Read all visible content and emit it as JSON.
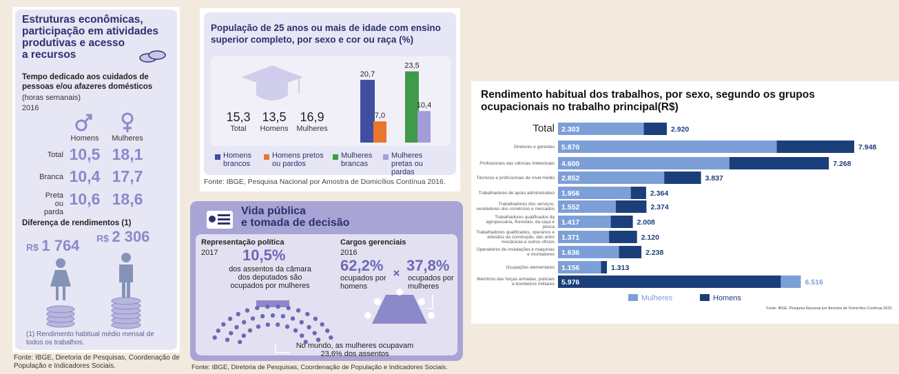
{
  "economic": {
    "title_lines": [
      "Estruturas econômicas,",
      "participação em atividades",
      "produtivas e acesso",
      "a recursos"
    ],
    "time_title": "Tempo dedicado aos cuidados de pessoas e/ou afazeres domésticos",
    "unit": "(horas semanais)",
    "year": "2016",
    "columns": [
      "Homens",
      "Mulheres"
    ],
    "rows": [
      {
        "label": "Total",
        "values": [
          "10,5",
          "18,1"
        ]
      },
      {
        "label": "Branca",
        "values": [
          "10,4",
          "17,7"
        ]
      },
      {
        "label": "Preta ou parda",
        "values": [
          "10,6",
          "18,6"
        ]
      }
    ],
    "income_title": "Diferença de rendimentos (1)",
    "income": [
      {
        "currency": "R$",
        "value": "1 764"
      },
      {
        "currency": "R$",
        "value": "2 306"
      }
    ],
    "footnote": "(1) Rendimento habitual médio mensal de todos os trabalhos.",
    "source": "Fonte: IBGE, Diretoria de Pesquisas, Coordenação de População e Indicadores Sociais."
  },
  "chart_data": [
    {
      "type": "bar",
      "title_lines": [
        "População de 25 anos ou mais de idade com ensino",
        "superior completo, por sexo e cor ou raça (%)"
      ],
      "summary": [
        {
          "value": "15,3",
          "label": "Total"
        },
        {
          "value": "13,5",
          "label": "Homens"
        },
        {
          "value": "16,9",
          "label": "Mulheres"
        }
      ],
      "categories": [
        "Homens brancos",
        "Homens pretos ou pardos",
        "Mulheres brancas",
        "Mulheres pretas ou pardas"
      ],
      "values": [
        20.7,
        7.0,
        23.5,
        10.4
      ],
      "value_labels": [
        "20,7",
        "7,0",
        "23,5",
        "10,4"
      ],
      "colors": [
        "#3f4ea0",
        "#e8762e",
        "#3f9a4b",
        "#a39ed8"
      ],
      "source": "Fonte: IBGE, Pesquisa Nacional por Amostra de Domicílios Contínua 2016."
    },
    {
      "type": "barh",
      "title_lines": [
        "Rendimento habitual dos trabalhos, por sexo, segundo os grupos",
        "ocupacionais no trabalho principal(R$)"
      ],
      "categories": [
        "Total",
        "Diretores e gerentes",
        "Profissionais das ciências intelectuais",
        "Técnicos e profissionais de nível médio",
        "Trabalhadores de apoio administrativo",
        "Trabalhadores dos serviços, vendedores dos comércios e mercados",
        "Trabalhadores qualificados da agropecuária, florestais, da caça e pesca",
        "Trabalhadores qualificados, operários e artesãos da construção, das artes mecânicas e outros ofícios",
        "Operadores de instalações e máquinas e montadores",
        "Ocupações elementares",
        "Membros das forças armadas, policiais e bombeiros militares"
      ],
      "series": [
        {
          "name": "Mulheres",
          "color": "#7d9fd8",
          "values": [
            2303,
            5870,
            4600,
            2852,
            1956,
            1552,
            1417,
            1371,
            1636,
            1156,
            6516
          ],
          "value_labels": [
            "2.303",
            "5.870",
            "4.600",
            "2.852",
            "1.956",
            "1.552",
            "1.417",
            "1.371",
            "1.636",
            "1.156",
            "6.516"
          ]
        },
        {
          "name": "Homens",
          "color": "#1b3f7a",
          "values": [
            2920,
            7948,
            7268,
            3837,
            2364,
            2374,
            2008,
            2120,
            2238,
            1313,
            5976
          ],
          "value_labels": [
            "2.920",
            "7.948",
            "7.268",
            "3.837",
            "2.364",
            "2.374",
            "2.008",
            "2.120",
            "2.238",
            "1.313",
            "5.976"
          ]
        }
      ],
      "source": "Fonte: IBGE, Pesquisa Nacional por Amostra de Domicílios Contínua 2022."
    }
  ],
  "public_life": {
    "title_lines": [
      "Vida pública",
      "e tomada de decisão"
    ],
    "representation": {
      "title": "Representação política",
      "year": "2017",
      "value": "10,5%",
      "text": "dos assentos da câmara dos deputados são ocupados por mulheres"
    },
    "management": {
      "title": "Cargos gerenciais",
      "year": "2016",
      "men": {
        "value": "62,2%",
        "text": "ocupados por homens"
      },
      "women": {
        "value": "37,8%",
        "text": "ocupados por mulheres"
      }
    },
    "world": "No mundo, as mulheres ocupavam 23,6% dos assentos",
    "source": "Fonte: IBGE, Diretoria de Pesquisas, Coordenação de População e Indicadores Sociais."
  }
}
